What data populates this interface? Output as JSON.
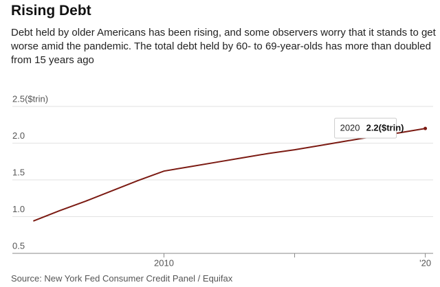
{
  "chart_data": {
    "type": "line",
    "title": "Rising Debt",
    "subtitle": "Debt held by older Americans has been rising, and some observers worry that it stands to get worse amid the pandemic. The total debt held by 60- to 69-year-olds has more than doubled from 15 years ago",
    "source": "Source: New York Fed Consumer Credit Panel / Equifax",
    "x": [
      2005,
      2006,
      2007,
      2008,
      2009,
      2010,
      2011,
      2012,
      2013,
      2014,
      2015,
      2016,
      2017,
      2018,
      2019,
      2020
    ],
    "values": [
      0.94,
      1.08,
      1.21,
      1.35,
      1.49,
      1.62,
      1.68,
      1.74,
      1.8,
      1.86,
      1.91,
      1.97,
      2.03,
      2.09,
      2.14,
      2.2
    ],
    "color": "#7b1a12",
    "xlim": [
      2004.2,
      2020.3
    ],
    "xticks": [
      2010,
      {
        "value": 2015,
        "label": null
      },
      {
        "value": 2020,
        "label": "'20"
      }
    ],
    "ylim": [
      0.5,
      2.5
    ],
    "yticks": [
      0.5,
      {
        "value": 1,
        "label": "1.0"
      },
      1.5,
      {
        "value": 2,
        "label": "2.0"
      },
      {
        "value": 2.5,
        "label": "2.5($trin)"
      }
    ],
    "grid": true,
    "tooltip_value": "2.2($trin)"
  }
}
